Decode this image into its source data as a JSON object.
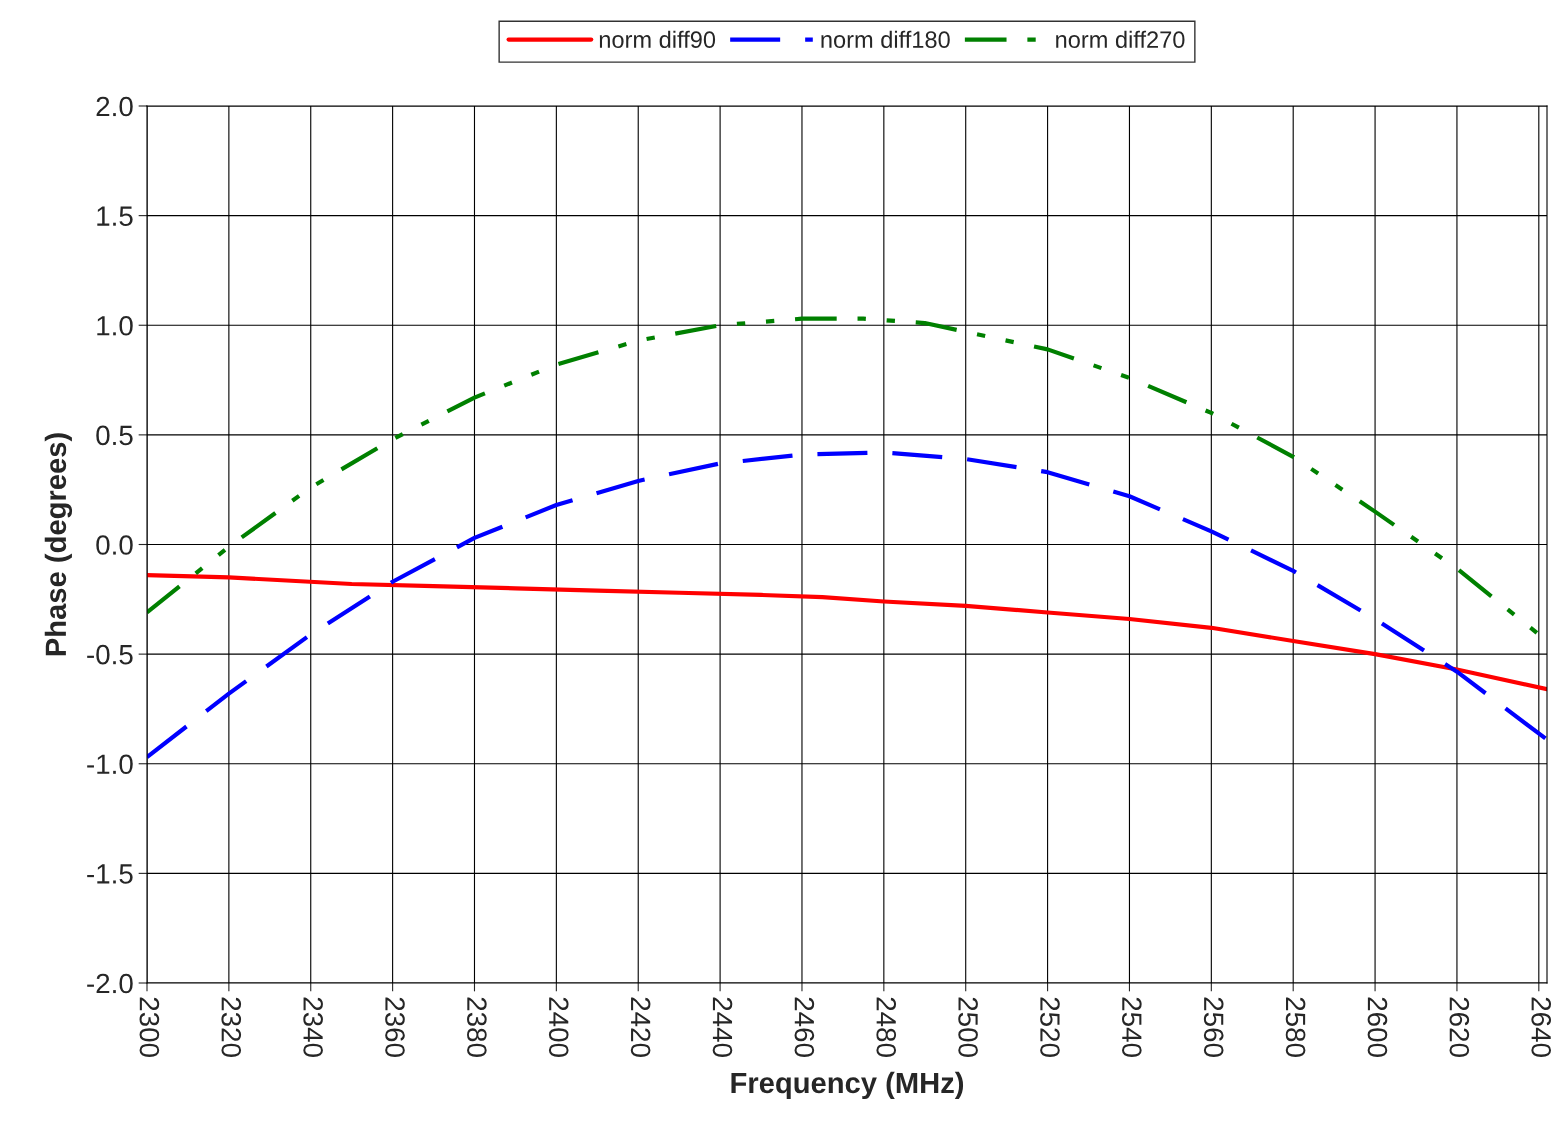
{
  "chart_data": {
    "type": "line",
    "xlabel": "Frequency (MHz)",
    "ylabel": "Phase (degrees)",
    "xlim": [
      2300,
      2642
    ],
    "xticks": [
      2300,
      2320,
      2340,
      2360,
      2380,
      2400,
      2420,
      2440,
      2460,
      2480,
      2500,
      2520,
      2540,
      2560,
      2580,
      2600,
      2620,
      2640
    ],
    "ylim": [
      -2,
      2
    ],
    "yticks": [
      {
        "value": -2,
        "label": "-2.0"
      },
      {
        "value": -1.5,
        "label": "-1.5"
      },
      {
        "value": -1,
        "label": "-1.0"
      },
      {
        "value": -0.5,
        "label": "-0.5"
      },
      {
        "value": 0,
        "label": "0.0"
      },
      {
        "value": 0.5,
        "label": "0.5"
      },
      {
        "value": 1,
        "label": "1.0"
      },
      {
        "value": 1.5,
        "label": "1.5"
      },
      {
        "value": 2,
        "label": "2.0"
      }
    ],
    "grid": true,
    "legend": "top",
    "marker": "none",
    "series": [
      {
        "name": "norm diff90",
        "color": "#ff0000",
        "line_style": "solid",
        "x": [
          2300,
          2320,
          2350,
          2370,
          2390,
          2410,
          2430,
          2450,
          2465,
          2480,
          2500,
          2520,
          2540,
          2560,
          2580,
          2600,
          2620,
          2642
        ],
        "values": [
          -0.14,
          -0.15,
          -0.18,
          -0.19,
          -0.2,
          -0.21,
          -0.22,
          -0.23,
          -0.24,
          -0.26,
          -0.28,
          -0.31,
          -0.34,
          -0.38,
          -0.44,
          -0.5,
          -0.57,
          -0.66
        ]
      },
      {
        "name": "norm diff180",
        "color": "#0000ff",
        "line_style": "dashed",
        "x": [
          2300,
          2320,
          2340,
          2360,
          2380,
          2400,
          2420,
          2440,
          2460,
          2480,
          2500,
          2520,
          2540,
          2560,
          2580,
          2600,
          2620,
          2642
        ],
        "values": [
          -0.97,
          -0.68,
          -0.41,
          -0.17,
          0.03,
          0.18,
          0.29,
          0.37,
          0.41,
          0.42,
          0.39,
          0.33,
          0.22,
          0.06,
          -0.12,
          -0.34,
          -0.58,
          -0.89
        ]
      },
      {
        "name": "norm diff270",
        "color": "#008000",
        "line_style": "dashdot",
        "x": [
          2300,
          2320,
          2340,
          2360,
          2380,
          2400,
          2420,
          2440,
          2460,
          2475,
          2490,
          2500,
          2520,
          2540,
          2560,
          2580,
          2600,
          2620,
          2642
        ],
        "values": [
          -0.31,
          -0.01,
          0.26,
          0.48,
          0.67,
          0.82,
          0.93,
          1.0,
          1.03,
          1.03,
          1.01,
          0.97,
          0.89,
          0.76,
          0.6,
          0.4,
          0.15,
          -0.11,
          -0.44
        ]
      }
    ]
  }
}
